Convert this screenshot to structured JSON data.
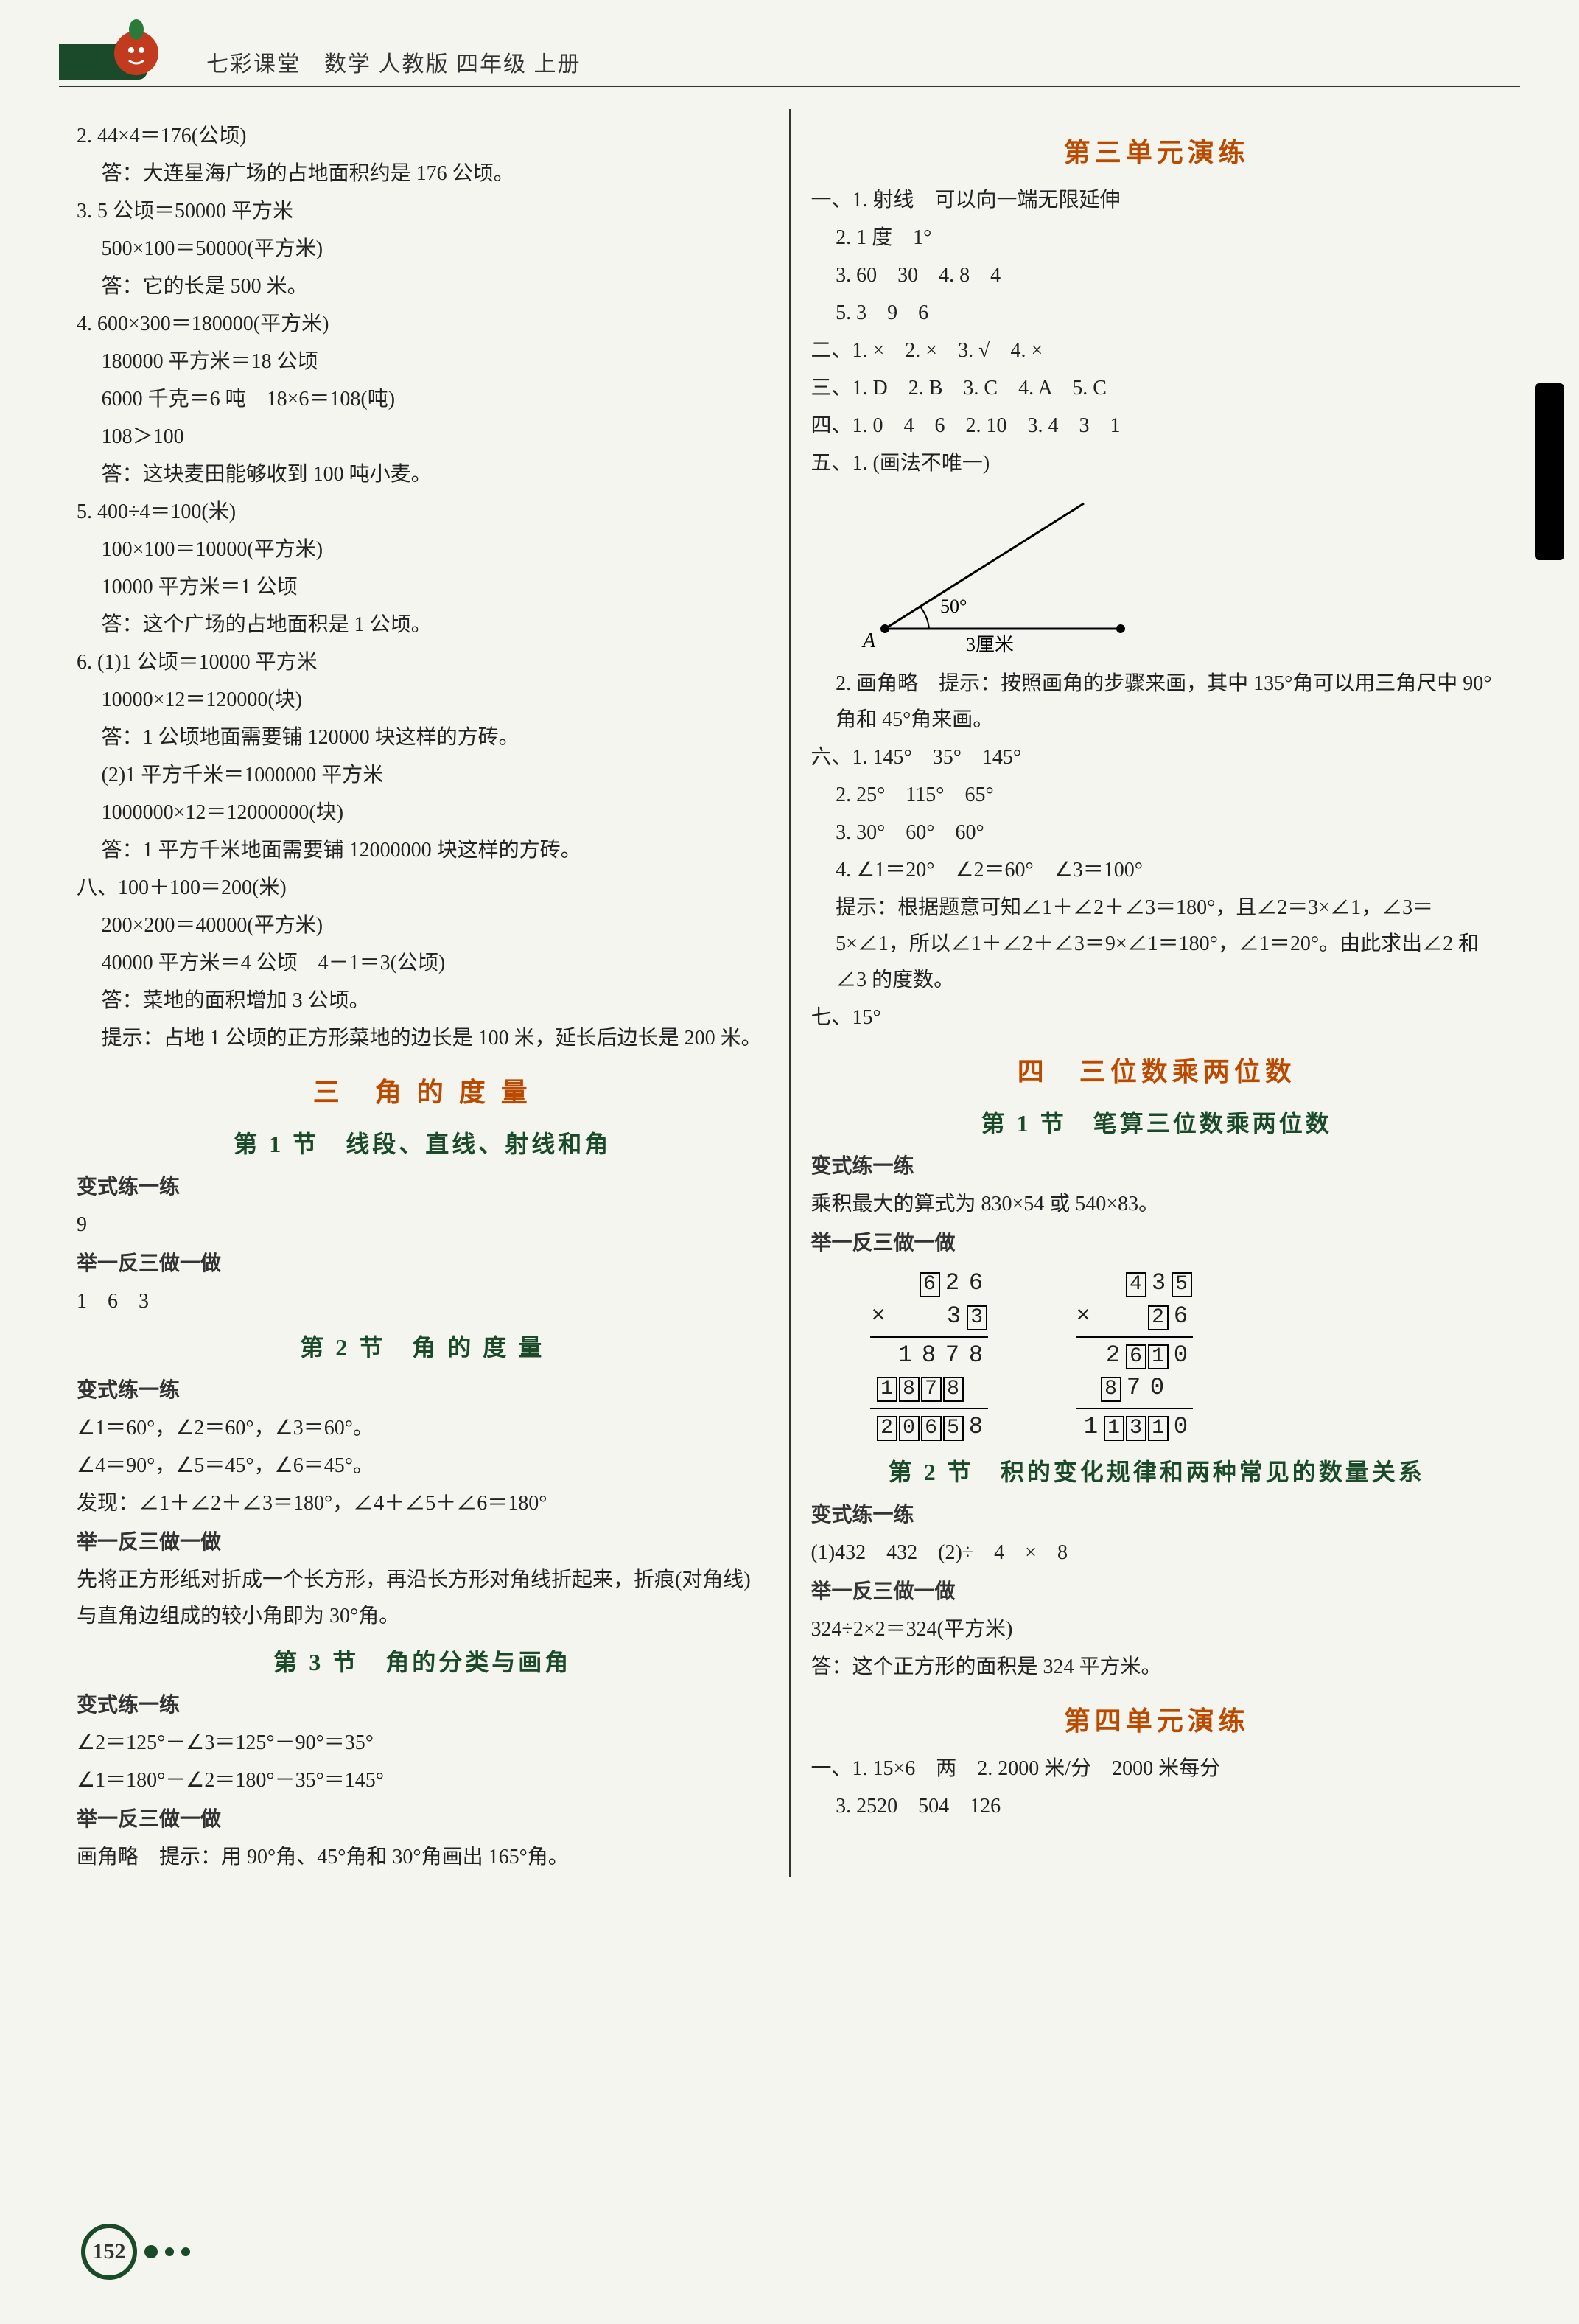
{
  "page_number": "152",
  "header": {
    "title": "七彩课堂　数学 人教版 四年级 上册"
  },
  "left": {
    "q2": {
      "l1": "2. 44×4＝176(公顷)",
      "l2": "答：大连星海广场的占地面积约是 176 公顷。"
    },
    "q3": {
      "l1": "3. 5 公顷＝50000 平方米",
      "l2": "500×100＝50000(平方米)",
      "l3": "答：它的长是 500 米。"
    },
    "q4": {
      "l1": "4. 600×300＝180000(平方米)",
      "l2": "180000 平方米＝18 公顷",
      "l3": "6000 千克＝6 吨　18×6＝108(吨)",
      "l4": "108＞100",
      "l5": "答：这块麦田能够收到 100 吨小麦。"
    },
    "q5": {
      "l1": "5. 400÷4＝100(米)",
      "l2": "100×100＝10000(平方米)",
      "l3": "10000 平方米＝1 公顷",
      "l4": "答：这个广场的占地面积是 1 公顷。"
    },
    "q6": {
      "l1": "6. (1)1 公顷＝10000 平方米",
      "l2": "10000×12＝120000(块)",
      "l3": "答：1 公顷地面需要铺 120000 块这样的方砖。",
      "l4": "(2)1 平方千米＝1000000 平方米",
      "l5": "1000000×12＝12000000(块)",
      "l6": "答：1 平方千米地面需要铺 12000000 块这样的方砖。"
    },
    "q8": {
      "l1": "八、100＋100＝200(米)",
      "l2": "200×200＝40000(平方米)",
      "l3": "40000 平方米＝4 公顷　4－1＝3(公顷)",
      "l4": "答：菜地的面积增加 3 公顷。",
      "l5": "提示：占地 1 公顷的正方形菜地的边长是 100 米，延长后边长是 200 米。"
    },
    "unit3": {
      "title": "三　角 的 度 量",
      "s1": {
        "title": "第 1 节　线段、直线、射线和角",
        "bsll": "变式练一练",
        "bsll_a": "9",
        "jyfs": "举一反三做一做",
        "jyfs_a": "1　6　3"
      },
      "s2": {
        "title": "第 2 节　角 的 度 量",
        "bsll": "变式练一练",
        "l1": "∠1＝60°，∠2＝60°，∠3＝60°。",
        "l2": "∠4＝90°，∠5＝45°，∠6＝45°。",
        "l3": "发现：∠1＋∠2＋∠3＝180°，∠4＋∠5＋∠6＝180°",
        "jyfs": "举一反三做一做",
        "l4": "先将正方形纸对折成一个长方形，再沿长方形对角线折起来，折痕(对角线)与直角边组成的较小角即为 30°角。"
      },
      "s3": {
        "title": "第 3 节　角的分类与画角",
        "bsll": "变式练一练",
        "l1": "∠2＝125°－∠3＝125°－90°＝35°",
        "l2": "∠1＝180°－∠2＝180°－35°＝145°",
        "jyfs": "举一反三做一做",
        "l3": "画角略　提示：用 90°角、45°角和 30°角画出 165°角。"
      }
    }
  },
  "right": {
    "u3drill": {
      "title": "第三单元演练",
      "i1": {
        "l1": "一、1. 射线　可以向一端无限延伸",
        "l2": "2. 1 度　1°",
        "l3": "3. 60　30　4. 8　4",
        "l4": "5. 3　9　6"
      },
      "i2": "二、1. ×　2. ×　3. √　4. ×",
      "i3": "三、1. D　2. B　3. C　4. A　5. C",
      "i4": "四、1. 0　4　6　2. 10　3. 4　3　1",
      "i5": {
        "l1": "五、1. (画法不唯一)",
        "angle_label": "50°",
        "point_label": "A",
        "base_label": "3厘米",
        "l2": "2. 画角略　提示：按照画角的步骤来画，其中 135°角可以用三角尺中 90°角和 45°角来画。"
      },
      "i6": {
        "l1": "六、1. 145°　35°　145°",
        "l2": "2. 25°　115°　65°",
        "l3": "3. 30°　60°　60°",
        "l4": "4. ∠1＝20°　∠2＝60°　∠3＝100°",
        "l5": "提示：根据题意可知∠1＋∠2＋∠3＝180°，且∠2＝3×∠1，∠3＝5×∠1，所以∠1＋∠2＋∠3＝9×∠1＝180°，∠1＝20°。由此求出∠2 和∠3 的度数。"
      },
      "i7": "七、15°"
    },
    "unit4": {
      "title": "四　三位数乘两位数",
      "s1": {
        "title": "第 1 节　笔算三位数乘两位数",
        "bsll": "变式练一练",
        "l1": "乘积最大的算式为 830×54 或 540×83。",
        "jyfs": "举一反三做一做",
        "calc1": {
          "r1": [
            "6",
            "2",
            "6"
          ],
          "r1_box": [
            1,
            0,
            0
          ],
          "op": "×",
          "r2": [
            "3",
            "3"
          ],
          "r2_box": [
            0,
            1
          ],
          "p1": [
            "1",
            "8",
            "7",
            "8"
          ],
          "p1_box": [
            0,
            0,
            0,
            0
          ],
          "p2": [
            "1",
            "8",
            "7",
            "8"
          ],
          "p2_box": [
            1,
            1,
            1,
            1
          ],
          "sum": [
            "2",
            "0",
            "6",
            "5",
            "8"
          ],
          "sum_box": [
            1,
            1,
            1,
            1,
            0
          ]
        },
        "calc2": {
          "r1": [
            "4",
            "3",
            "5"
          ],
          "r1_box": [
            1,
            0,
            1
          ],
          "op": "×",
          "r2": [
            "2",
            "6"
          ],
          "r2_box": [
            1,
            0
          ],
          "p1": [
            "2",
            "6",
            "1",
            "0"
          ],
          "p1_box": [
            0,
            1,
            1,
            0
          ],
          "p2": [
            "8",
            "7",
            "0"
          ],
          "p2_box": [
            1,
            0,
            0
          ],
          "sum": [
            "1",
            "1",
            "3",
            "1",
            "0"
          ],
          "sum_box": [
            0,
            1,
            1,
            1,
            0
          ]
        }
      },
      "s2": {
        "title": "第 2 节　积的变化规律和两种常见的数量关系",
        "bsll": "变式练一练",
        "l1": "(1)432　432　(2)÷　4　×　8",
        "jyfs": "举一反三做一做",
        "l2": "324÷2×2＝324(平方米)",
        "l3": "答：这个正方形的面积是 324 平方米。"
      }
    },
    "u4drill": {
      "title": "第四单元演练",
      "i1": {
        "l1": "一、1. 15×6　两　2. 2000 米/分　2000 米每分",
        "l2": "3. 2520　504　126"
      }
    }
  }
}
